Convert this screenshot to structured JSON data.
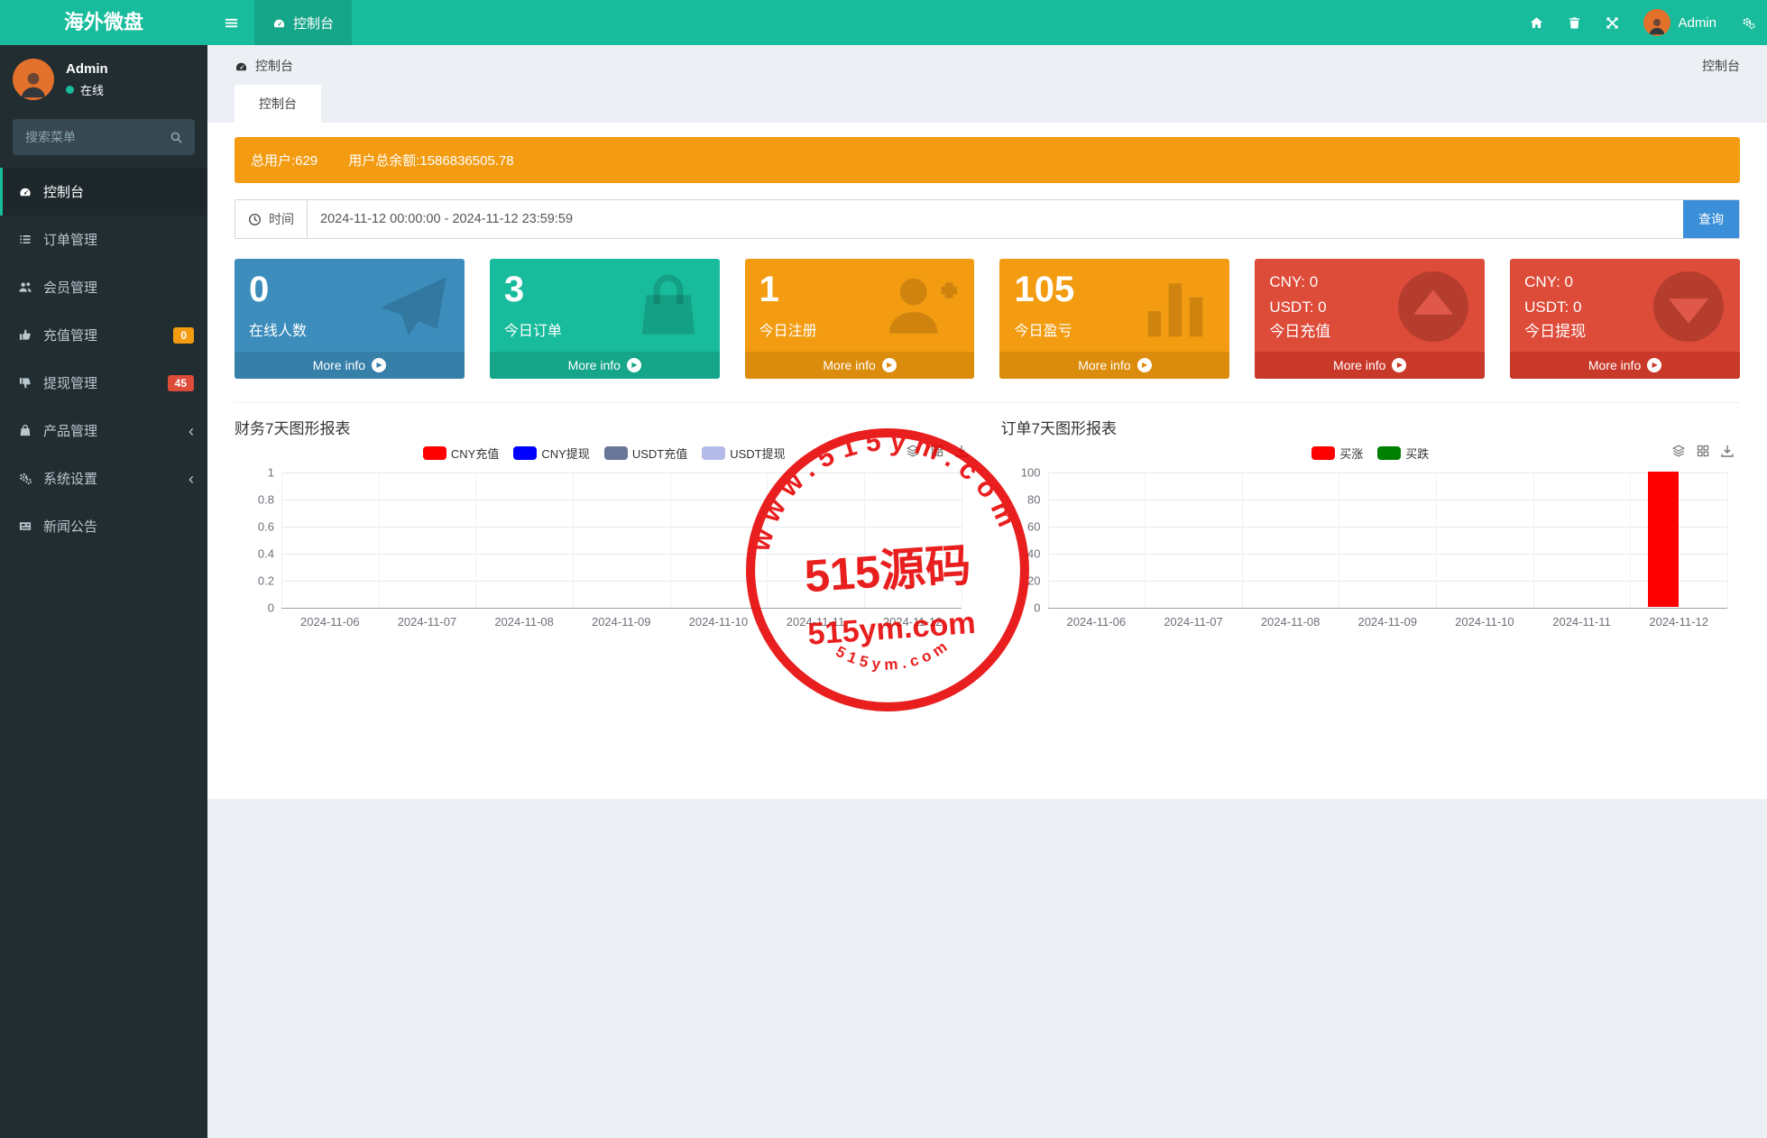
{
  "app": {
    "title": "海外微盘"
  },
  "navbar": {
    "active_tab": "控制台",
    "username": "Admin"
  },
  "sidebar": {
    "username": "Admin",
    "status": "在线",
    "search_placeholder": "搜索菜单",
    "items": [
      {
        "key": "dashboard",
        "label": "控制台",
        "icon": "dashboard-icon",
        "active": true
      },
      {
        "key": "orders",
        "label": "订单管理",
        "icon": "list-icon"
      },
      {
        "key": "members",
        "label": "会员管理",
        "icon": "users-icon"
      },
      {
        "key": "recharge",
        "label": "充值管理",
        "icon": "thumbs-up-icon",
        "badge": "0",
        "badge_color": "#f39c12"
      },
      {
        "key": "withdraw",
        "label": "提现管理",
        "icon": "thumbs-down-icon",
        "badge": "45",
        "badge_color": "#dd4b39"
      },
      {
        "key": "products",
        "label": "产品管理",
        "icon": "shopping-bag-icon",
        "chevron": true
      },
      {
        "key": "settings",
        "label": "系统设置",
        "icon": "gears-icon",
        "chevron": true
      },
      {
        "key": "news",
        "label": "新闻公告",
        "icon": "newspaper-icon"
      }
    ]
  },
  "breadcrumb": {
    "left": "控制台",
    "right": "控制台"
  },
  "tab_label": "控制台",
  "alert": {
    "total_users": "总用户:629",
    "total_balance": "用户总余额:1586836505.78"
  },
  "time_filter": {
    "label": "时间",
    "value": "2024-11-12 00:00:00 - 2024-11-12 23:59:59",
    "button_label": "查询"
  },
  "info_boxes": [
    {
      "key": "online-users",
      "value": "0",
      "label": "在线人数",
      "icon": "paper-plane-icon",
      "color": "#3c8dbc",
      "footer_color": "#367fa9",
      "more_label": "More info"
    },
    {
      "key": "today-orders",
      "value": "3",
      "label": "今日订单",
      "icon": "shopping-bag-icon",
      "color": "#18bc9c",
      "footer_color": "#15a589",
      "more_label": "More info"
    },
    {
      "key": "today-registrations",
      "value": "1",
      "label": "今日注册",
      "icon": "user-plus-icon",
      "color": "#f39c12",
      "footer_color": "#dc8c0c",
      "more_label": "More info"
    },
    {
      "key": "today-profit",
      "value": "105",
      "label": "今日盈亏",
      "icon": "bar-chart-icon",
      "color": "#f39c12",
      "footer_color": "#dc8c0c",
      "more_label": "More info"
    },
    {
      "key": "today-recharge",
      "lines": [
        "CNY:  0",
        "USDT:  0",
        "今日充值"
      ],
      "icon": "circle-up-icon",
      "color": "#dd4b39",
      "footer_color": "#c9392a",
      "more_label": "More info"
    },
    {
      "key": "today-withdraw",
      "lines": [
        "CNY:  0",
        "USDT:  0",
        "今日提现"
      ],
      "icon": "circle-down-icon",
      "color": "#dd4b39",
      "footer_color": "#c9392a",
      "more_label": "More info"
    }
  ],
  "chart_data": [
    {
      "type": "line",
      "title": "财务7天图形报表",
      "categories": [
        "2024-11-06",
        "2024-11-07",
        "2024-11-08",
        "2024-11-09",
        "2024-11-10",
        "2024-11-11",
        "2024-11-12"
      ],
      "series": [
        {
          "name": "CNY充值",
          "color": "#ff0000",
          "values": [
            0,
            0,
            0,
            0,
            0,
            0,
            0
          ]
        },
        {
          "name": "CNY提现",
          "color": "#0000ff",
          "values": [
            0,
            0,
            0,
            0,
            0,
            0,
            0
          ]
        },
        {
          "name": "USDT充值",
          "color": "#6a7697",
          "values": [
            0,
            0,
            0,
            0,
            0,
            0,
            0
          ]
        },
        {
          "name": "USDT提现",
          "color": "#b4bbe8",
          "values": [
            0,
            0,
            0,
            0,
            0,
            0,
            0
          ]
        }
      ],
      "ylim": [
        0,
        1
      ],
      "yticks": [
        0,
        0.2,
        0.4,
        0.6,
        0.8,
        1
      ],
      "legend_position": "top",
      "grid": true
    },
    {
      "type": "bar",
      "title": "订单7天图形报表",
      "categories": [
        "2024-11-06",
        "2024-11-07",
        "2024-11-08",
        "2024-11-09",
        "2024-11-10",
        "2024-11-11",
        "2024-11-12"
      ],
      "series": [
        {
          "name": "买涨",
          "color": "#ff0000",
          "values": [
            0,
            0,
            0,
            0,
            0,
            0,
            100
          ]
        },
        {
          "name": "买跌",
          "color": "#008000",
          "values": [
            0,
            0,
            0,
            0,
            0,
            0,
            0
          ]
        }
      ],
      "ylim": [
        0,
        100
      ],
      "yticks": [
        0,
        20,
        40,
        60,
        80,
        100
      ],
      "legend_position": "top",
      "grid": true
    }
  ],
  "watermark": {
    "arc_top": "www.515ym.com",
    "center": "515源码",
    "center_sub": "515ym.com",
    "arc_bottom": "515ym.com",
    "color": "#e60000"
  }
}
